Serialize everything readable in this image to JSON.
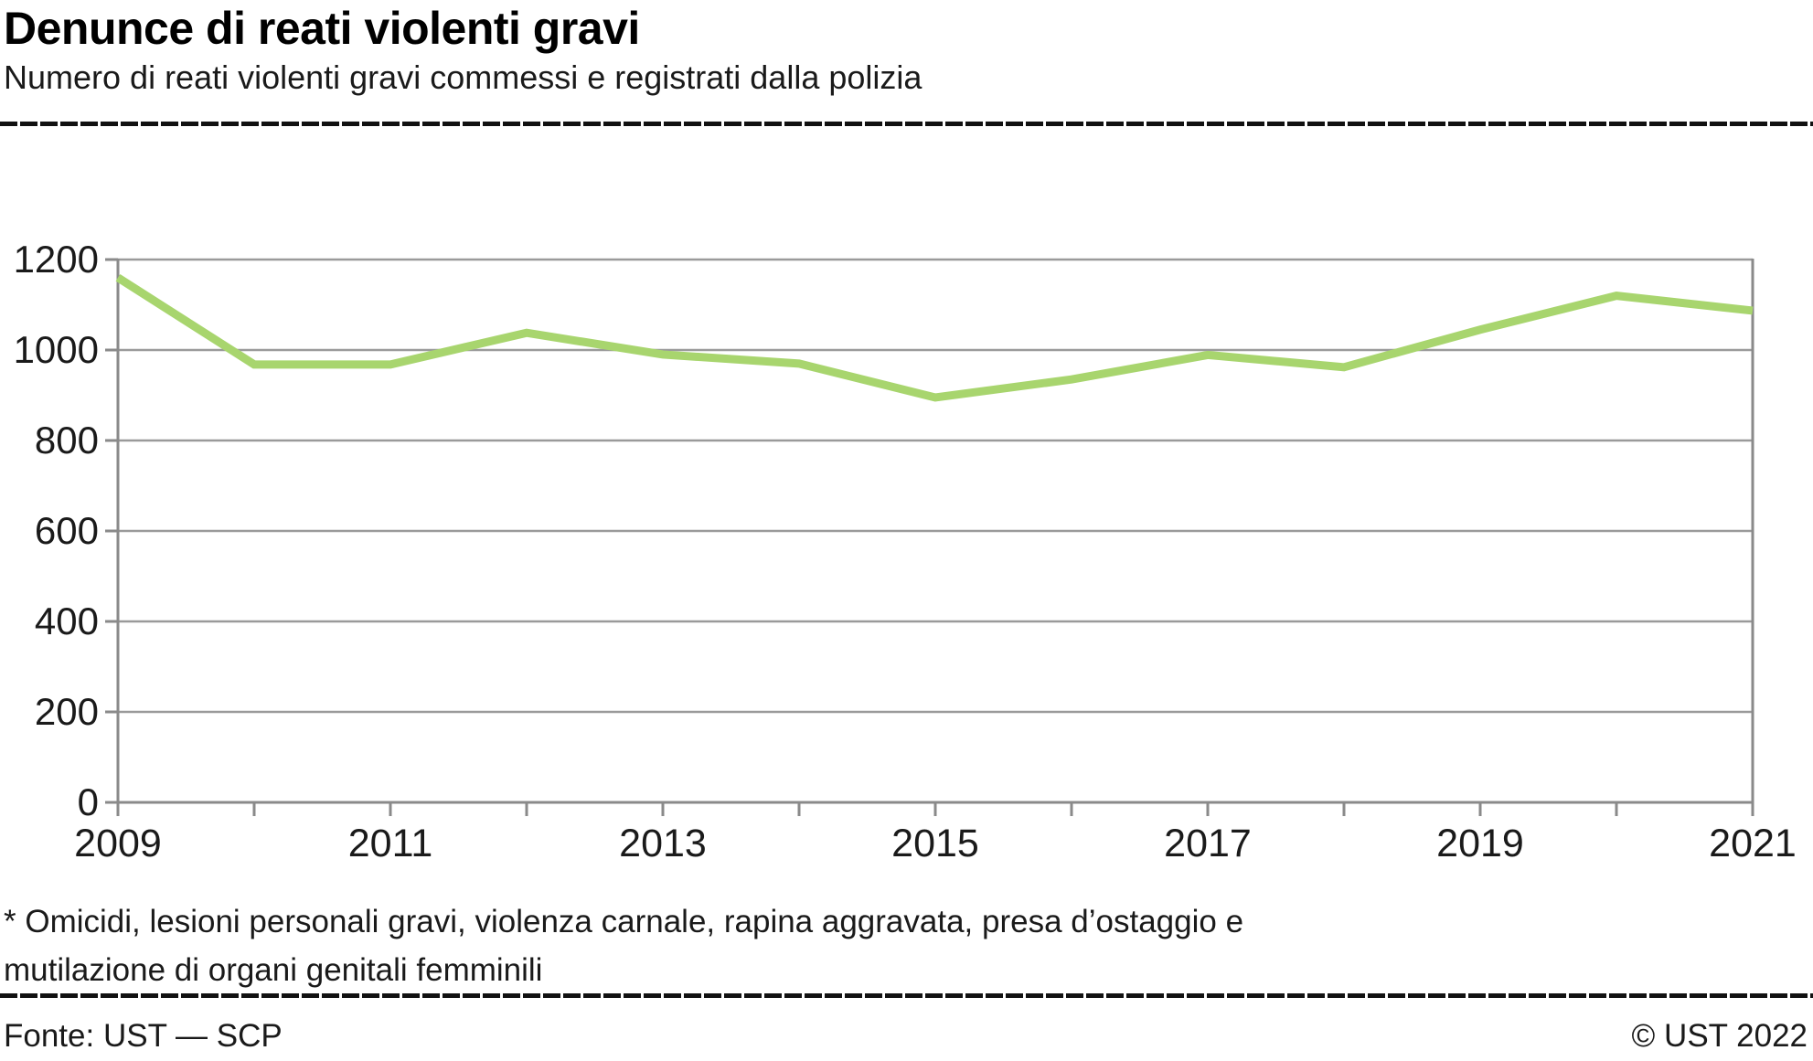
{
  "header": {
    "title": "Denunce di reati violenti gravi",
    "subtitle": "Numero di reati violenti gravi commessi e registrati dalla polizia"
  },
  "footnote": {
    "line1": "* Omicidi, lesioni personali gravi, violenza carnale, rapina aggravata, presa d’ostaggio e",
    "line2": "mutilazione di organi genitali femminili"
  },
  "footer": {
    "source": "Fonte: UST — SCP",
    "copyright": "© UST 2022"
  },
  "chart_data": {
    "type": "line",
    "title": "Denunce di reati violenti gravi",
    "x": [
      2009,
      2010,
      2011,
      2012,
      2013,
      2014,
      2015,
      2016,
      2017,
      2018,
      2019,
      2020,
      2021
    ],
    "values": [
      1160,
      968,
      968,
      1038,
      990,
      970,
      895,
      935,
      989,
      962,
      1045,
      1120,
      1087
    ],
    "xlabel": "",
    "ylabel": "",
    "ylim": [
      0,
      1200
    ],
    "ytick_step": 200,
    "ytick_labels": [
      "0",
      "200",
      "400",
      "600",
      "800",
      "1000",
      "1200"
    ],
    "xtick_labels": [
      "2009",
      "2011",
      "2013",
      "2015",
      "2017",
      "2019",
      "2021"
    ],
    "grid": true,
    "legend_position": "none",
    "line_color": "#a8d56e",
    "grid_color": "#9a9a9a",
    "axis_color": "#8a8a8a"
  }
}
